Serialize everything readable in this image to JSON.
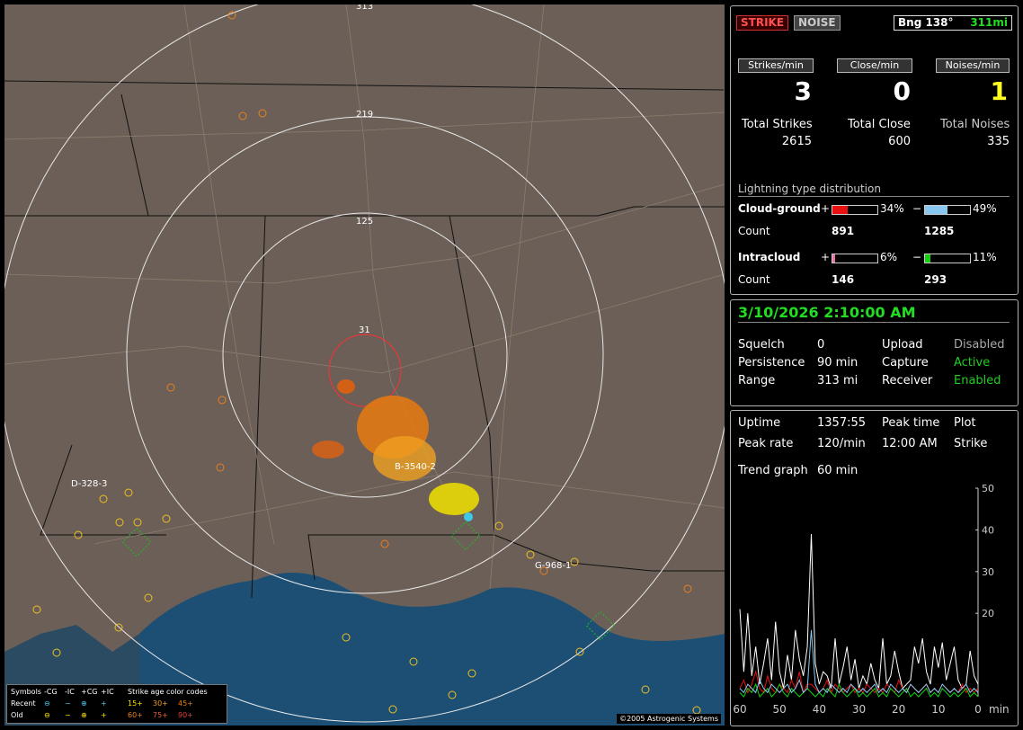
{
  "map": {
    "ring_labels": [
      "313",
      "219",
      "125",
      "31"
    ],
    "stations": [
      "D-328-3",
      "B-3540-2",
      "G-968-1"
    ],
    "copyright": "©2005 Astrogenic Systems",
    "legend": {
      "title_symbols": "Symbols",
      "col_neg_cg": "-CG",
      "col_neg_ic": "-IC",
      "col_pos_cg": "+CG",
      "col_pos_ic": "+IC",
      "age_title": "Strike age color codes",
      "recent_label": "Recent",
      "old_label": "Old",
      "ages_recent": [
        "15+",
        "30+",
        "45+"
      ],
      "ages_old": [
        "60+",
        "75+",
        "90+"
      ]
    }
  },
  "status": {
    "strike_tab": "STRIKE",
    "noise_tab": "NOISE",
    "bearing": "Bng 138°",
    "distance": "311mi",
    "strikes_per_min_btn": "Strikes/min",
    "close_per_min_btn": "Close/min",
    "noises_per_min_btn": "Noises/min",
    "strikes_per_min": "3",
    "close_per_min": "0",
    "noises_per_min": "1",
    "total_strikes_label": "Total Strikes",
    "total_close_label": "Total Close",
    "total_noises_label": "Total Noises",
    "total_strikes": "2615",
    "total_close": "600",
    "total_noises": "335"
  },
  "distribution": {
    "title": "Lightning type distribution",
    "cg_label": "Cloud-ground",
    "ic_label": "Intracloud",
    "count_label": "Count",
    "plus": "+",
    "minus": "−",
    "cg_pos_pct": "34%",
    "cg_neg_pct": "49%",
    "ic_pos_pct": "6%",
    "ic_neg_pct": "11%",
    "cg_pos_count": "891",
    "cg_neg_count": "1285",
    "ic_pos_count": "146",
    "ic_neg_count": "293",
    "cg_pos_frac": 0.34,
    "cg_neg_frac": 0.49,
    "ic_pos_frac": 0.06,
    "ic_neg_frac": 0.11,
    "colors": {
      "cg_pos": "#e81010",
      "cg_neg": "#88c8f0",
      "ic_pos": "#e870a8",
      "ic_neg": "#10d010"
    }
  },
  "settings": {
    "datetime": "3/10/2026 2:10:00 AM",
    "squelch_label": "Squelch",
    "squelch": "0",
    "persistence_label": "Persistence",
    "persistence": "90 min",
    "range_label": "Range",
    "range": "313 mi",
    "upload_label": "Upload",
    "upload": "Disabled",
    "capture_label": "Capture",
    "capture": "Active",
    "receiver_label": "Receiver",
    "receiver": "Enabled"
  },
  "stats": {
    "uptime_label": "Uptime",
    "uptime": "1357:55",
    "peak_time_label": "Peak time",
    "peak_time": "12:00 AM",
    "plot_label": "Plot",
    "plot": "Strike",
    "peak_rate_label": "Peak rate",
    "peak_rate": "120/min",
    "trend_label": "Trend graph",
    "trend": "60 min"
  },
  "chart_data": {
    "type": "line",
    "x_ticks": [
      "60",
      "50",
      "40",
      "30",
      "20",
      "10",
      "0"
    ],
    "x_unit": "min",
    "y_ticks": [
      "50",
      "40",
      "30",
      "20"
    ],
    "ylim": [
      0,
      50
    ],
    "xlim": [
      60,
      0
    ],
    "x": [
      60,
      59,
      58,
      57,
      56,
      55,
      54,
      53,
      52,
      51,
      50,
      49,
      48,
      47,
      46,
      45,
      44,
      43,
      42,
      41,
      40,
      39,
      38,
      37,
      36,
      35,
      34,
      33,
      32,
      31,
      30,
      29,
      28,
      27,
      26,
      25,
      24,
      23,
      22,
      21,
      20,
      19,
      18,
      17,
      16,
      15,
      14,
      13,
      12,
      11,
      10,
      9,
      8,
      7,
      6,
      5,
      4,
      3,
      2,
      1,
      0
    ],
    "series": [
      {
        "color": "#ffffff",
        "values": [
          21,
          6,
          20,
          5,
          12,
          3,
          8,
          14,
          4,
          18,
          6,
          2,
          10,
          4,
          16,
          9,
          5,
          12,
          39,
          8,
          3,
          6,
          5,
          2,
          14,
          3,
          7,
          12,
          4,
          9,
          2,
          5,
          3,
          8,
          4,
          2,
          14,
          3,
          5,
          11,
          6,
          2,
          3,
          4,
          12,
          8,
          14,
          6,
          3,
          12,
          7,
          13,
          4,
          8,
          12,
          4,
          2,
          3,
          11,
          5,
          3
        ]
      },
      {
        "color": "#e81010",
        "values": [
          2,
          4,
          1,
          3,
          6,
          2,
          1,
          5,
          2,
          1,
          3,
          2,
          1,
          4,
          2,
          6,
          1,
          3,
          3,
          2,
          1,
          2,
          4,
          1,
          3,
          2,
          1,
          2,
          3,
          1,
          2,
          1,
          3,
          2,
          1,
          2,
          1,
          3,
          2,
          1,
          4,
          2,
          1,
          3,
          2,
          1,
          2,
          3,
          1,
          2,
          1,
          3,
          2,
          1,
          2,
          1,
          3,
          1,
          2,
          1,
          2
        ]
      },
      {
        "color": "#10d010",
        "values": [
          1,
          0,
          2,
          1,
          3,
          0,
          1,
          2,
          0,
          1,
          3,
          1,
          0,
          2,
          1,
          0,
          1,
          2,
          1,
          0,
          1,
          0,
          2,
          1,
          0,
          3,
          1,
          0,
          1,
          2,
          0,
          1,
          0,
          1,
          2,
          0,
          1,
          0,
          2,
          1,
          0,
          1,
          2,
          0,
          1,
          0,
          1,
          2,
          0,
          1,
          0,
          2,
          1,
          0,
          1,
          0,
          1,
          2,
          0,
          1,
          0
        ]
      },
      {
        "color": "#88c8f0",
        "values": [
          2,
          1,
          3,
          2,
          1,
          4,
          2,
          1,
          3,
          2,
          1,
          2,
          3,
          1,
          2,
          4,
          1,
          2,
          16,
          3,
          1,
          2,
          1,
          3,
          2,
          1,
          2,
          1,
          3,
          2,
          1,
          2,
          1,
          2,
          3,
          1,
          2,
          1,
          3,
          2,
          1,
          2,
          1,
          3,
          2,
          1,
          2,
          3,
          1,
          2,
          1,
          3,
          2,
          1,
          2,
          1,
          2,
          3,
          1,
          2,
          1
        ]
      }
    ]
  }
}
